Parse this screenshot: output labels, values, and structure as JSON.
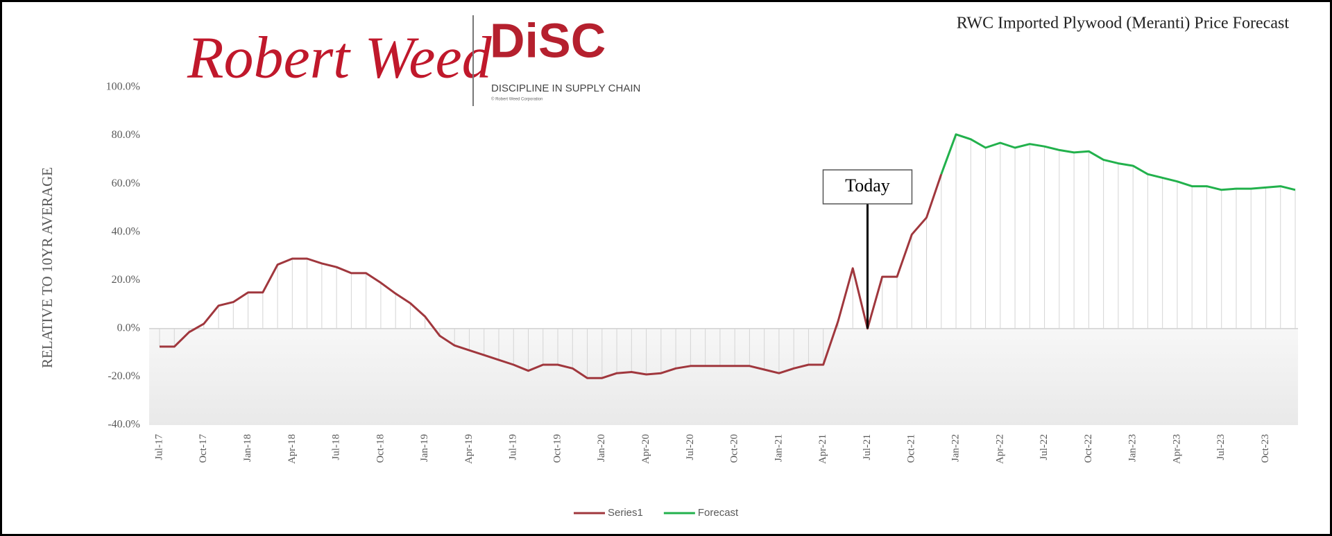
{
  "logo": {
    "brand": "Robert Weed",
    "mark": "DiSC",
    "tagline": "DISCIPLINE IN SUPPLY CHAIN",
    "copyright": "© Robert Weed Corporation"
  },
  "chart_data": {
    "type": "line",
    "title": "RWC  Imported Plywood (Meranti) Price Forecast",
    "y_label": "RELATIVE TO 10YR AVERAGE",
    "annotation": {
      "text": "Today",
      "x": "Jul-21"
    },
    "categories": [
      "Jul-17",
      null,
      null,
      "Oct-17",
      null,
      null,
      "Jan-18",
      null,
      null,
      "Apr-18",
      null,
      null,
      "Jul-18",
      null,
      null,
      "Oct-18",
      null,
      null,
      "Jan-19",
      null,
      null,
      "Apr-19",
      null,
      null,
      "Jul-19",
      null,
      null,
      "Oct-19",
      null,
      null,
      "Jan-20",
      null,
      null,
      "Apr-20",
      null,
      null,
      "Jul-20",
      null,
      null,
      "Oct-20",
      null,
      null,
      "Jan-21",
      null,
      null,
      "Apr-21",
      null,
      null,
      "Jul-21",
      null,
      null,
      "Oct-21",
      null,
      null,
      "Jan-22",
      null,
      null,
      "Apr-22",
      null,
      null,
      "Jul-22",
      null,
      null,
      "Oct-22",
      null,
      null,
      "Jan-23",
      null,
      null,
      "Apr-23",
      null,
      null,
      "Jul-23",
      null,
      null,
      "Oct-23",
      null,
      null
    ],
    "series": [
      {
        "name": "Series1",
        "color": "#a0373d",
        "values": [
          -7.5,
          -7.5,
          -1.5,
          2,
          9.5,
          11,
          15,
          15,
          26.5,
          29,
          29,
          27,
          25.5,
          23,
          23,
          19,
          14.5,
          10.5,
          5,
          -3,
          -7,
          -9,
          -11,
          -13,
          -15,
          -17.5,
          -15,
          -15,
          -16.5,
          -20.5,
          -20.5,
          -18.5,
          -18,
          -19,
          -18.5,
          -16.5,
          -15.5,
          -15.5,
          -15.5,
          -15.5,
          -15.5,
          -17,
          -18.5,
          -16.5,
          -15,
          -15,
          3,
          25,
          0,
          21.5,
          21.5,
          39,
          46,
          64,
          null,
          null,
          null,
          null,
          null,
          null,
          null,
          null,
          null,
          null,
          null,
          null,
          null,
          null,
          null,
          null,
          null,
          null,
          null,
          null,
          null,
          null,
          null,
          null
        ]
      },
      {
        "name": "Forecast",
        "color": "#22b14c",
        "values": [
          null,
          null,
          null,
          null,
          null,
          null,
          null,
          null,
          null,
          null,
          null,
          null,
          null,
          null,
          null,
          null,
          null,
          null,
          null,
          null,
          null,
          null,
          null,
          null,
          null,
          null,
          null,
          null,
          null,
          null,
          null,
          null,
          null,
          null,
          null,
          null,
          null,
          null,
          null,
          null,
          null,
          null,
          null,
          null,
          null,
          null,
          null,
          null,
          null,
          null,
          null,
          null,
          null,
          64,
          80.5,
          78.5,
          75,
          77,
          75,
          76.5,
          75.5,
          74,
          73,
          73.5,
          70,
          68.5,
          67.5,
          64,
          62.5,
          61,
          59,
          59,
          57.5,
          58,
          58,
          58.5,
          59,
          57.5
        ]
      }
    ],
    "ylim": [
      -40,
      100
    ],
    "yticks": [
      {
        "value": -40,
        "label": "-40.0%"
      },
      {
        "value": -20,
        "label": "-20.0%"
      },
      {
        "value": 0,
        "label": "0.0%"
      },
      {
        "value": 20,
        "label": "20.0%"
      },
      {
        "value": 40,
        "label": "40.0%"
      },
      {
        "value": 60,
        "label": "60.0%"
      },
      {
        "value": 80,
        "label": "80.0%"
      },
      {
        "value": 100,
        "label": "100.0%"
      }
    ],
    "grid": false,
    "legend": "bottom"
  }
}
